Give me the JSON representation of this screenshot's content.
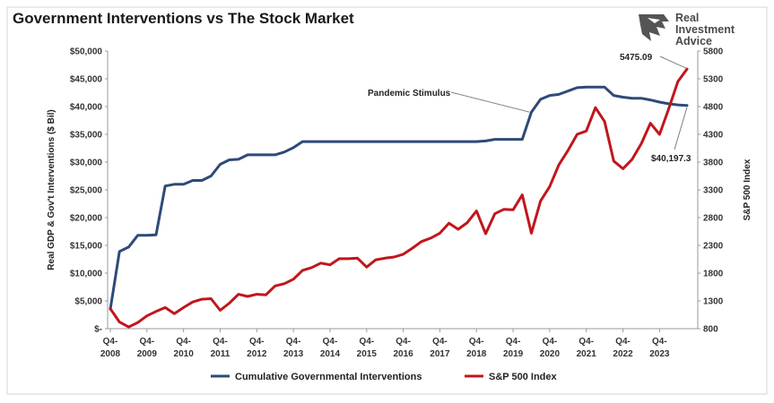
{
  "chart_data": {
    "type": "line",
    "title": "Government Interventions vs The Stock Market",
    "logo": {
      "lines": [
        "Real",
        "Investment",
        "Advice"
      ]
    },
    "x_ticks": [
      {
        "line1": "Q4-",
        "line2": "2008",
        "t": 0
      },
      {
        "line1": "Q4-",
        "line2": "2009",
        "t": 4
      },
      {
        "line1": "Q4-",
        "line2": "2010",
        "t": 8
      },
      {
        "line1": "Q4-",
        "line2": "2011",
        "t": 12
      },
      {
        "line1": "Q4-",
        "line2": "2012",
        "t": 16
      },
      {
        "line1": "Q4-",
        "line2": "2013",
        "t": 20
      },
      {
        "line1": "Q4-",
        "line2": "2014",
        "t": 24
      },
      {
        "line1": "Q4-",
        "line2": "2015",
        "t": 28
      },
      {
        "line1": "Q4-",
        "line2": "2016",
        "t": 32
      },
      {
        "line1": "Q4-",
        "line2": "2017",
        "t": 36
      },
      {
        "line1": "Q4-",
        "line2": "2018",
        "t": 40
      },
      {
        "line1": "Q4-",
        "line2": "2019",
        "t": 44
      },
      {
        "line1": "Q4-",
        "line2": "2020",
        "t": 48
      },
      {
        "line1": "Q4-",
        "line2": "2021",
        "t": 52
      },
      {
        "line1": "Q4-",
        "line2": "2022",
        "t": 56
      },
      {
        "line1": "Q4-",
        "line2": "2023",
        "t": 60
      }
    ],
    "x_range": [
      0,
      64
    ],
    "y_left": {
      "label": "Real GDP & Gov't Interventions ($ Bil)",
      "range": [
        0,
        50000
      ],
      "ticks": [
        {
          "value": 0,
          "label": "$-"
        },
        {
          "value": 5000,
          "label": "$5,000"
        },
        {
          "value": 10000,
          "label": "$10,000"
        },
        {
          "value": 15000,
          "label": "$15,000"
        },
        {
          "value": 20000,
          "label": "$20,000"
        },
        {
          "value": 25000,
          "label": "$25,000"
        },
        {
          "value": 30000,
          "label": "$30,000"
        },
        {
          "value": 35000,
          "label": "$35,000"
        },
        {
          "value": 40000,
          "label": "$40,000"
        },
        {
          "value": 45000,
          "label": "$45,000"
        },
        {
          "value": 50000,
          "label": "$50,000"
        }
      ]
    },
    "y_right": {
      "label": "S&P 500 Index",
      "range": [
        800,
        5800
      ],
      "ticks": [
        {
          "value": 800,
          "label": "800"
        },
        {
          "value": 1300,
          "label": "1300"
        },
        {
          "value": 1800,
          "label": "1800"
        },
        {
          "value": 2300,
          "label": "2300"
        },
        {
          "value": 2800,
          "label": "2800"
        },
        {
          "value": 3300,
          "label": "3300"
        },
        {
          "value": 3800,
          "label": "3800"
        },
        {
          "value": 4300,
          "label": "4300"
        },
        {
          "value": 4800,
          "label": "4800"
        },
        {
          "value": 5300,
          "label": "5300"
        },
        {
          "value": 5800,
          "label": "5800"
        }
      ]
    },
    "grid": false,
    "legend_position": "bottom",
    "series": [
      {
        "name": "Cumulative Governmental Interventions",
        "color": "#2e4a78",
        "axis": "left",
        "t": [
          0,
          1,
          2,
          3,
          4,
          5,
          6,
          7,
          8,
          9,
          10,
          11,
          12,
          13,
          14,
          15,
          16,
          17,
          18,
          19,
          20,
          21,
          22,
          23,
          24,
          25,
          26,
          27,
          28,
          29,
          30,
          31,
          32,
          33,
          34,
          35,
          36,
          37,
          38,
          39,
          40,
          41,
          42,
          43,
          44,
          45,
          46,
          47,
          48,
          49,
          50,
          51,
          52,
          53,
          54,
          55,
          56,
          57,
          58,
          59,
          60,
          61,
          62,
          63
        ],
        "values": [
          3500,
          13900,
          14700,
          16800,
          16800,
          16900,
          25700,
          26000,
          26000,
          26700,
          26700,
          27500,
          29600,
          30400,
          30500,
          31300,
          31300,
          31300,
          31300,
          31800,
          32600,
          33700,
          33700,
          33700,
          33700,
          33700,
          33700,
          33700,
          33700,
          33700,
          33700,
          33700,
          33700,
          33700,
          33700,
          33700,
          33700,
          33700,
          33700,
          33700,
          33700,
          33800,
          34100,
          34100,
          34100,
          34100,
          39000,
          41300,
          42000,
          42200,
          42800,
          43400,
          43500,
          43500,
          43500,
          42000,
          41700,
          41500,
          41500,
          41200,
          40800,
          40500,
          40300,
          40197.3
        ]
      },
      {
        "name": "S&P 500 Index",
        "color": "#c0161c",
        "axis": "right",
        "t": [
          0,
          1,
          2,
          3,
          4,
          5,
          6,
          7,
          8,
          9,
          10,
          11,
          12,
          13,
          14,
          15,
          16,
          17,
          18,
          19,
          20,
          21,
          22,
          23,
          24,
          25,
          26,
          27,
          28,
          29,
          30,
          31,
          32,
          33,
          34,
          35,
          36,
          37,
          38,
          39,
          40,
          41,
          42,
          43,
          44,
          45,
          46,
          47,
          48,
          49,
          50,
          51,
          52,
          53,
          54,
          55,
          56,
          57,
          58,
          59,
          60,
          61,
          62,
          63
        ],
        "values": [
          1160,
          920,
          830,
          910,
          1030,
          1110,
          1180,
          1070,
          1180,
          1280,
          1330,
          1340,
          1130,
          1260,
          1420,
          1380,
          1420,
          1410,
          1570,
          1610,
          1690,
          1850,
          1900,
          1980,
          1950,
          2060,
          2060,
          2070,
          1910,
          2040,
          2070,
          2090,
          2140,
          2250,
          2370,
          2430,
          2520,
          2700,
          2590,
          2710,
          2920,
          2510,
          2870,
          2950,
          2940,
          3210,
          2520,
          3100,
          3360,
          3750,
          4010,
          4300,
          4360,
          4780,
          4530,
          3820,
          3680,
          3850,
          4130,
          4500,
          4300,
          4760,
          5250,
          5475.09
        ]
      }
    ],
    "annotations": [
      {
        "text": "Pandemic Stimulus",
        "t": 46,
        "value": 39000,
        "axis": "left"
      },
      {
        "text": "$40,197.3",
        "t": 63,
        "value": 40197.3,
        "axis": "left"
      },
      {
        "text": "5475.09",
        "t": 63,
        "value": 5475.09,
        "axis": "right"
      }
    ]
  }
}
